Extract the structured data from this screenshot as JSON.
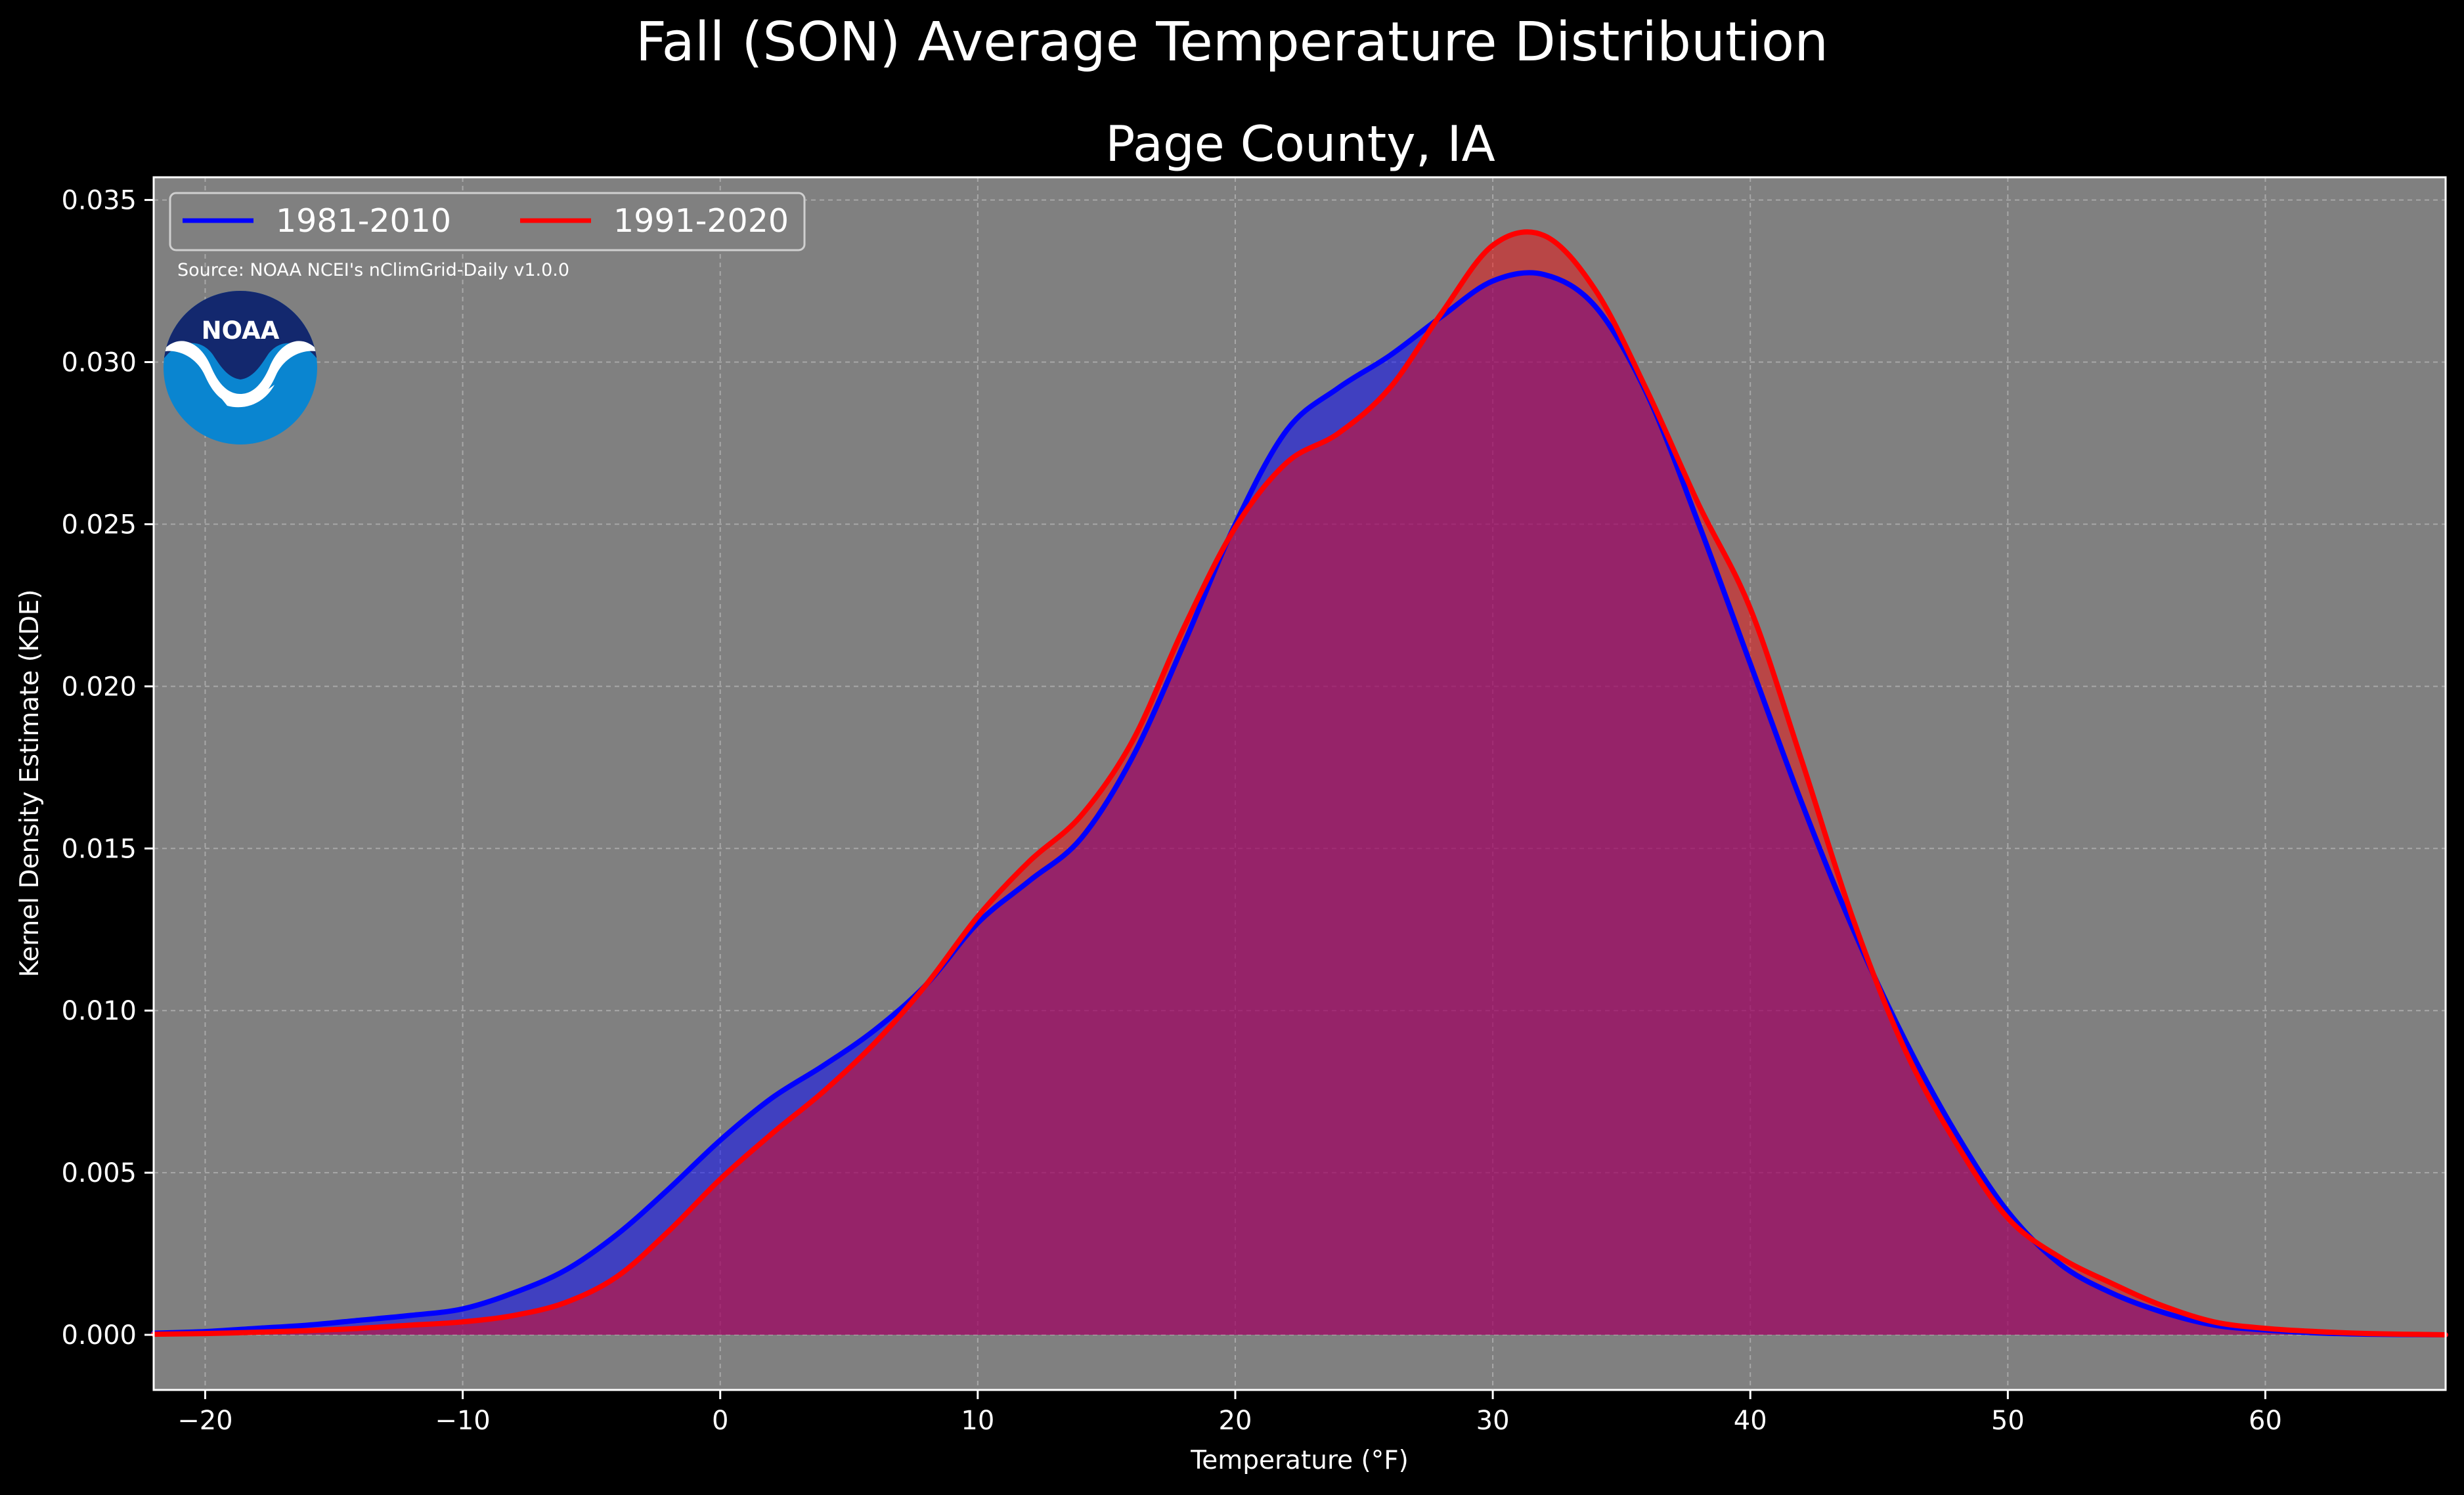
{
  "chart_data": {
    "type": "area",
    "title": "Fall (SON) Average Temperature Distribution",
    "subtitle": "Page County, IA",
    "xlabel": "Temperature (°F)",
    "ylabel": "Kernel Density Estimate (KDE)",
    "xlim": [
      -22,
      67
    ],
    "ylim": [
      -0.0017,
      0.0357
    ],
    "xticks": [
      -20,
      -10,
      0,
      10,
      20,
      30,
      40,
      50,
      60
    ],
    "xtick_labels": [
      "−20",
      "−10",
      "0",
      "10",
      "20",
      "30",
      "40",
      "50",
      "60"
    ],
    "yticks": [
      0,
      0.005,
      0.01,
      0.015,
      0.02,
      0.025,
      0.03,
      0.035
    ],
    "ytick_labels": [
      "0.000",
      "0.005",
      "0.010",
      "0.015",
      "0.020",
      "0.025",
      "0.030",
      "0.035"
    ],
    "grid": true,
    "legend_position": "top-left",
    "source": "Source: NOAA NCEI's nClimGrid-Daily v1.0.0",
    "logo_text": "NOAA",
    "background_color": "#000000",
    "plot_background_color": "#808080",
    "series": [
      {
        "name": "1981-2010",
        "color": "#0000ff",
        "fill_color": "#0000ff",
        "fill_opacity": 0.5,
        "x": [
          -22,
          -20,
          -18,
          -16,
          -14,
          -12,
          -10,
          -8,
          -6,
          -4,
          -2,
          0,
          2,
          4,
          6,
          8,
          10,
          12,
          14,
          16,
          18,
          20,
          22,
          24,
          26,
          28,
          30,
          32,
          34,
          36,
          38,
          40,
          42,
          44,
          46,
          48,
          50,
          52,
          54,
          56,
          58,
          60,
          62,
          64,
          67
        ],
        "y": [
          5e-05,
          0.0001,
          0.0002,
          0.0003,
          0.00045,
          0.0006,
          0.0008,
          0.0013,
          0.002,
          0.0031,
          0.0045,
          0.006,
          0.0073,
          0.0083,
          0.0094,
          0.0108,
          0.0127,
          0.014,
          0.0153,
          0.0178,
          0.0213,
          0.025,
          0.0279,
          0.0292,
          0.0302,
          0.0314,
          0.0325,
          0.0327,
          0.0317,
          0.029,
          0.025,
          0.0207,
          0.0164,
          0.0125,
          0.0091,
          0.0062,
          0.0038,
          0.0022,
          0.0013,
          0.0007,
          0.0003,
          0.00015,
          6e-05,
          2e-05,
          0.0
        ]
      },
      {
        "name": "1991-2020",
        "color": "#ff0000",
        "fill_color": "#ff0000",
        "fill_opacity": 0.45,
        "x": [
          -22,
          -20,
          -18,
          -16,
          -14,
          -12,
          -10,
          -8,
          -6,
          -4,
          -2,
          0,
          2,
          4,
          6,
          8,
          10,
          12,
          14,
          16,
          18,
          20,
          22,
          24,
          26,
          28,
          30,
          32,
          34,
          36,
          38,
          40,
          42,
          44,
          46,
          48,
          50,
          52,
          54,
          56,
          58,
          60,
          62,
          64,
          67
        ],
        "y": [
          2e-05,
          4e-05,
          8e-05,
          0.00013,
          0.0002,
          0.0003,
          0.0004,
          0.0006,
          0.001,
          0.0018,
          0.0032,
          0.0048,
          0.0062,
          0.0075,
          0.009,
          0.0108,
          0.0129,
          0.0146,
          0.016,
          0.0183,
          0.0218,
          0.0249,
          0.0269,
          0.0278,
          0.0292,
          0.0315,
          0.0336,
          0.0339,
          0.0322,
          0.0291,
          0.0256,
          0.0224,
          0.0177,
          0.0128,
          0.0088,
          0.0059,
          0.0036,
          0.0024,
          0.0016,
          0.0009,
          0.0004,
          0.0002,
          0.0001,
          4e-05,
          0.0
        ]
      }
    ]
  }
}
